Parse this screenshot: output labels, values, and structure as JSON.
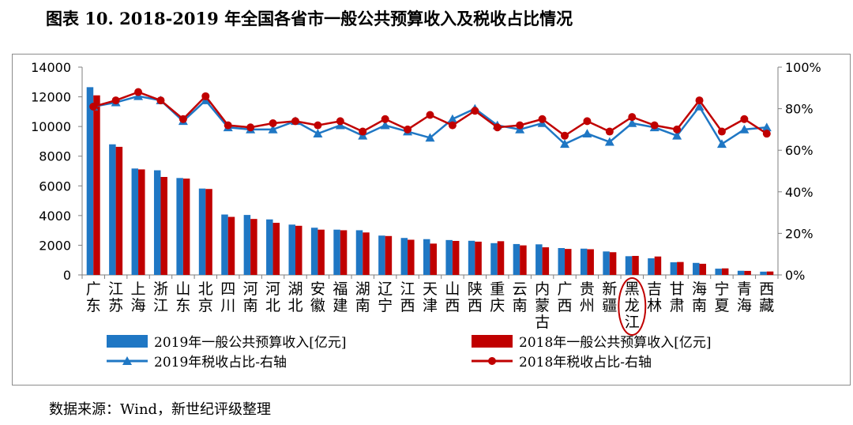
{
  "title": "图表 10. 2018-2019 年全国各省市一般公共预算收入及税收占比情况",
  "source": "数据来源：Wind，新世纪评级整理",
  "colors": {
    "series2019": "#1f77c4",
    "series2018": "#c00000",
    "axis": "#7f7f7f",
    "annotation": "#c00000"
  },
  "chart_data": {
    "type": "bar",
    "categories": [
      "广东",
      "江苏",
      "上海",
      "浙江",
      "山东",
      "北京",
      "四川",
      "河南",
      "河北",
      "湖北",
      "安徽",
      "福建",
      "湖南",
      "辽宁",
      "江西",
      "天津",
      "山西",
      "陕西",
      "重庆",
      "云南",
      "内蒙古",
      "广西",
      "贵州",
      "新疆",
      "黑龙江",
      "吉林",
      "甘肃",
      "海南",
      "宁夏",
      "青海",
      "西藏"
    ],
    "series": [
      {
        "name": "2019年一般公共预算收入[亿元]",
        "axis": "left",
        "kind": "bar",
        "values": [
          12650,
          8800,
          7170,
          7050,
          6530,
          5820,
          4070,
          4040,
          3740,
          3390,
          3180,
          3050,
          3010,
          2650,
          2490,
          2410,
          2350,
          2300,
          2140,
          2080,
          2060,
          1810,
          1770,
          1580,
          1260,
          1120,
          850,
          810,
          420,
          280,
          220
        ]
      },
      {
        "name": "2018年一般公共预算收入[亿元]",
        "axis": "left",
        "kind": "bar",
        "values": [
          12100,
          8630,
          7110,
          6600,
          6490,
          5790,
          3910,
          3770,
          3510,
          3310,
          3050,
          3010,
          2860,
          2620,
          2370,
          2110,
          2290,
          2240,
          2270,
          1990,
          1860,
          1750,
          1730,
          1530,
          1280,
          1240,
          870,
          750,
          440,
          270,
          230
        ]
      },
      {
        "name": "2019年税收占比-右轴",
        "axis": "right",
        "kind": "line",
        "marker": "triangle",
        "values": [
          81,
          83,
          86,
          84,
          74,
          84,
          71,
          70,
          70,
          74,
          68,
          72,
          67,
          72,
          69,
          66,
          75,
          80,
          72,
          70,
          73,
          63,
          68,
          64,
          73,
          71,
          67,
          81,
          63,
          70,
          71
        ]
      },
      {
        "name": "2018年税收占比-右轴",
        "axis": "right",
        "kind": "line",
        "marker": "circle",
        "values": [
          81,
          84,
          88,
          84,
          75,
          86,
          72,
          71,
          73,
          74,
          72,
          74,
          69,
          75,
          70,
          77,
          72,
          79,
          71,
          72,
          75,
          67,
          74,
          69,
          76,
          72,
          70,
          84,
          69,
          75,
          68
        ]
      }
    ],
    "ylim_left": [
      0,
      14000
    ],
    "yticks_left": [
      "0",
      "2000",
      "4000",
      "6000",
      "8000",
      "10000",
      "12000",
      "14000"
    ],
    "ylim_right": [
      0,
      100
    ],
    "yticks_right": [
      "0%",
      "20%",
      "40%",
      "60%",
      "80%",
      "100%"
    ],
    "highlight_category": "黑龙江",
    "legend_position": "bottom",
    "grid": false
  }
}
